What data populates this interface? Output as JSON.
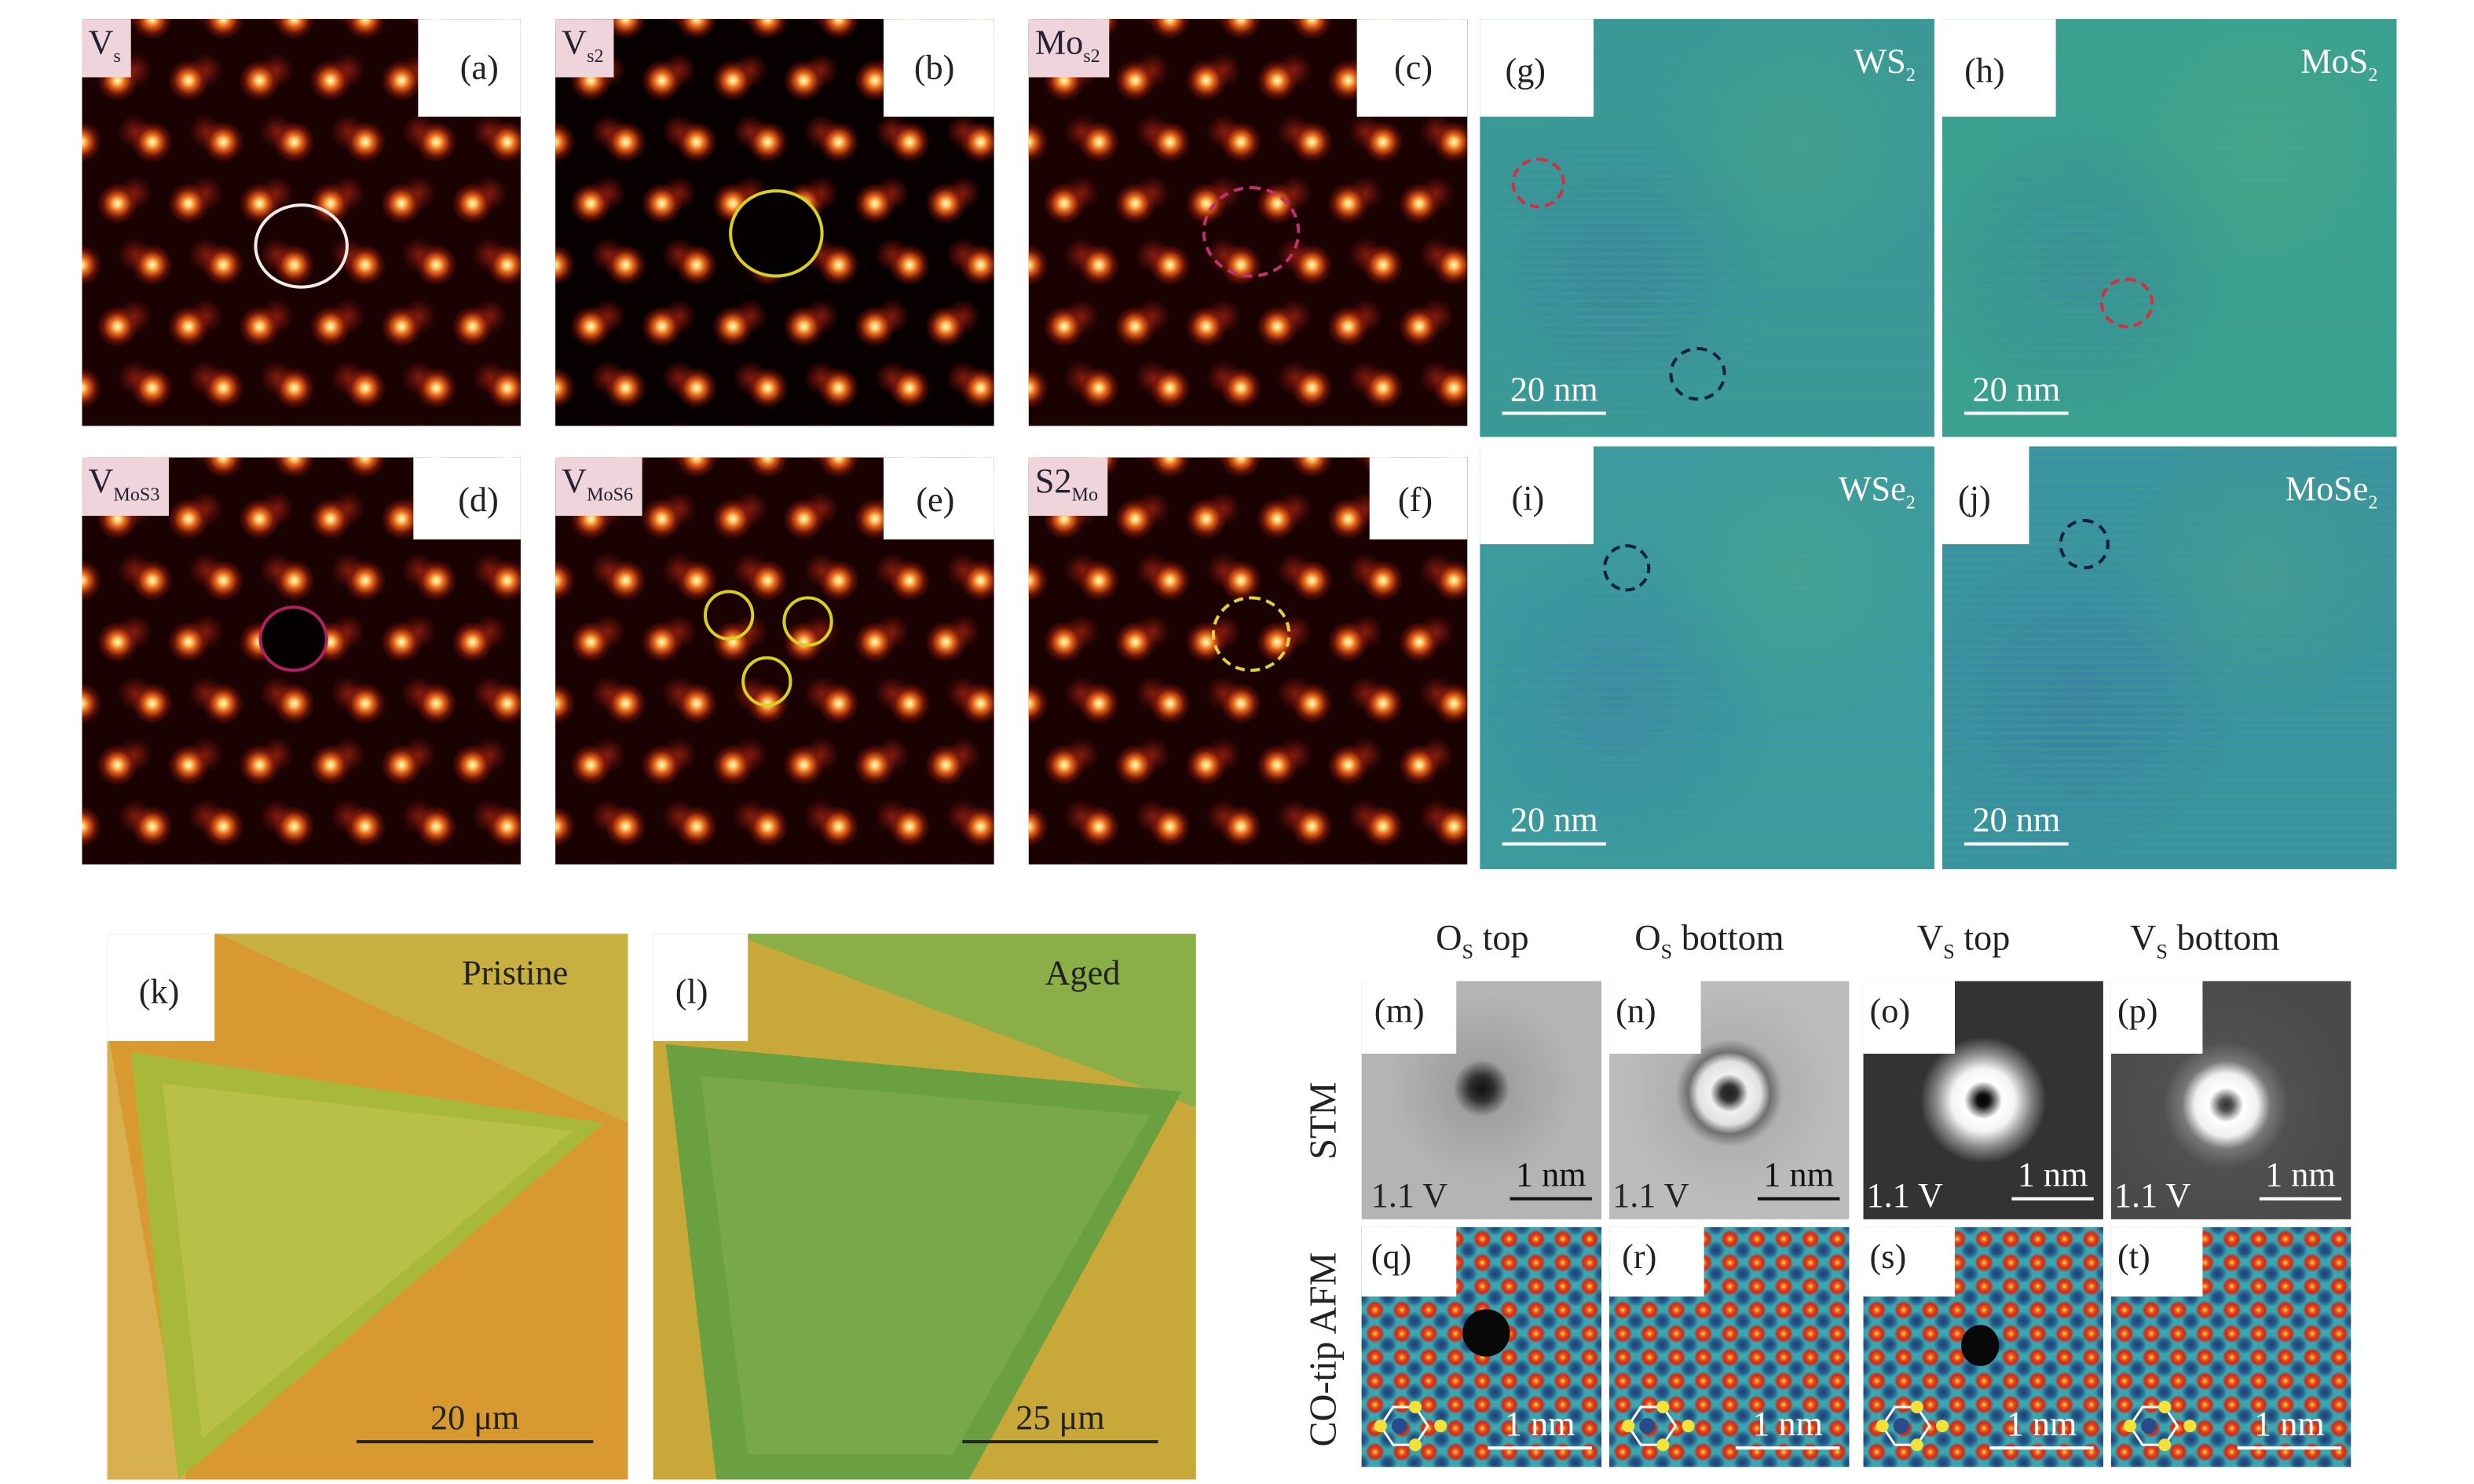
{
  "stm_panels": [
    {
      "id": "(a)",
      "tag": "V",
      "tag_sub": "s"
    },
    {
      "id": "(b)",
      "tag": "V",
      "tag_sub": "s2"
    },
    {
      "id": "(c)",
      "tag": "Mo",
      "tag_sub": "s2"
    },
    {
      "id": "(d)",
      "tag": "V",
      "tag_sub": "MoS3"
    },
    {
      "id": "(e)",
      "tag": "V",
      "tag_sub": "MoS6"
    },
    {
      "id": "(f)",
      "tag": "S2",
      "tag_sub": "Mo"
    }
  ],
  "map_panels": [
    {
      "id": "(g)",
      "material": "WS",
      "sub": "2",
      "scale": "20 nm"
    },
    {
      "id": "(h)",
      "material": "MoS",
      "sub": "2",
      "scale": "20 nm"
    },
    {
      "id": "(i)",
      "material": "WSe",
      "sub": "2",
      "scale": "20 nm"
    },
    {
      "id": "(j)",
      "material": "MoSe",
      "sub": "2",
      "scale": "20 nm"
    }
  ],
  "optical_panels": [
    {
      "id": "(k)",
      "title": "Pristine",
      "scale": "20 μm"
    },
    {
      "id": "(l)",
      "title": "Aged",
      "scale": "25 μm"
    }
  ],
  "columns": [
    {
      "base": "O",
      "sub": "S",
      "rest": " top"
    },
    {
      "base": "O",
      "sub": "S",
      "rest": " bottom"
    },
    {
      "base": "V",
      "sub": "S",
      "rest": " top"
    },
    {
      "base": "V",
      "sub": "S",
      "rest": " bottom"
    }
  ],
  "rows": {
    "stm": "STM",
    "afm": "CO-tip AFM"
  },
  "small_stm": [
    {
      "id": "(m)",
      "bias": "1.1 V",
      "scale": "1 nm"
    },
    {
      "id": "(n)",
      "bias": "1.1 V",
      "scale": "1 nm"
    },
    {
      "id": "(o)",
      "bias": "1.1 V",
      "scale": "1 nm"
    },
    {
      "id": "(p)",
      "bias": "1.1 V",
      "scale": "1 nm"
    }
  ],
  "small_afm": [
    {
      "id": "(q)",
      "scale": "1 nm"
    },
    {
      "id": "(r)",
      "scale": "1 nm"
    },
    {
      "id": "(s)",
      "scale": "1 nm"
    },
    {
      "id": "(t)",
      "scale": "1 nm"
    }
  ]
}
